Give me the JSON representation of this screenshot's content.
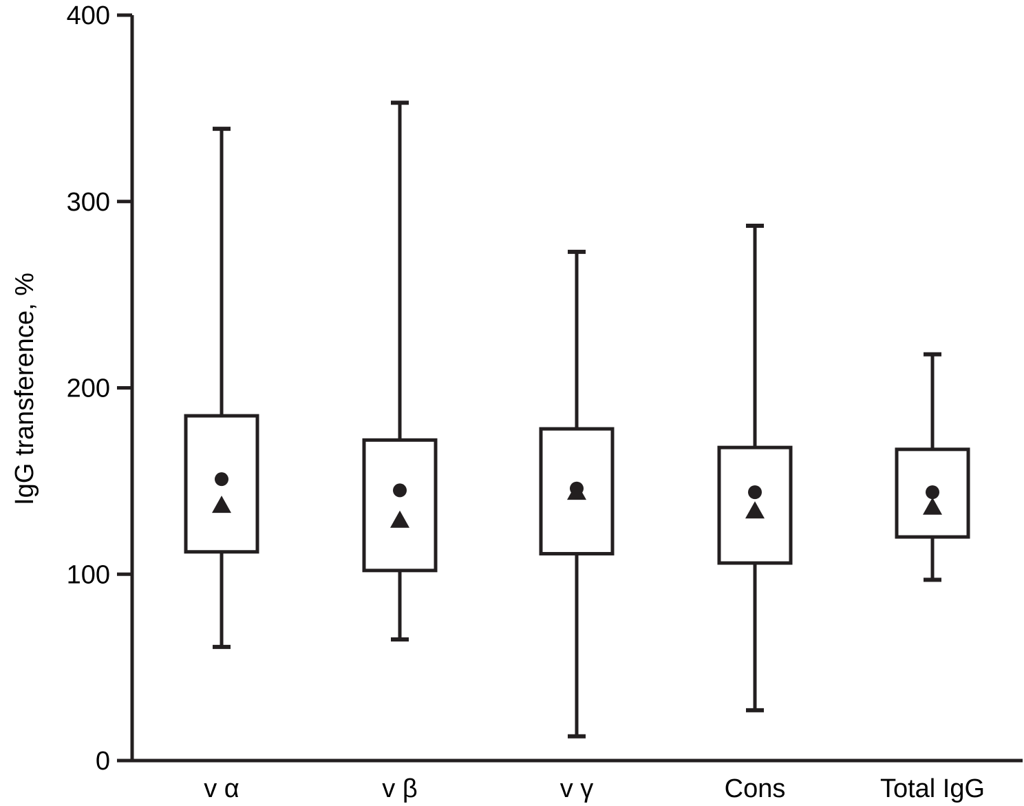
{
  "chart_data": {
    "type": "box",
    "ylabel": "IgG transference, %",
    "xlabel": "",
    "ylim": [
      0,
      400
    ],
    "yticks": [
      "0",
      "100",
      "200",
      "300",
      "400"
    ],
    "categories": [
      "v α",
      "v β",
      "v γ",
      "Cons",
      "Total IgG"
    ],
    "boxes": [
      {
        "category": "v α",
        "min": 61,
        "q1": 112,
        "q3": 185,
        "max": 339,
        "mean": 151,
        "median": 137
      },
      {
        "category": "v β",
        "min": 65,
        "q1": 102,
        "q3": 172,
        "max": 353,
        "mean": 145,
        "median": 129
      },
      {
        "category": "v γ",
        "min": 13,
        "q1": 111,
        "q3": 178,
        "max": 273,
        "mean": 146,
        "median": 144
      },
      {
        "category": "Cons",
        "min": 27,
        "q1": 106,
        "q3": 168,
        "max": 287,
        "mean": 144,
        "median": 134
      },
      {
        "category": "Total IgG",
        "min": 97,
        "q1": 120,
        "q3": 167,
        "max": 218,
        "mean": 144,
        "median": 136
      }
    ],
    "markers": {
      "mean": "circle",
      "median": "triangle"
    },
    "grid": false,
    "legend": "none"
  }
}
